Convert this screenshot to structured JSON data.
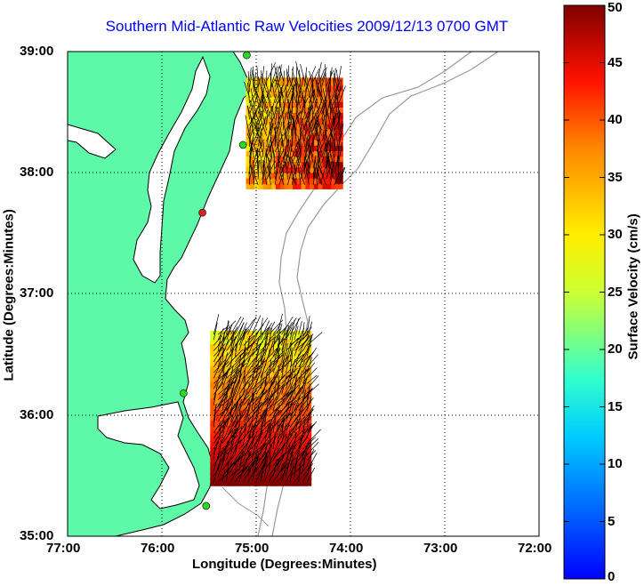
{
  "title": "Southern Mid-Atlantic Raw Velocities 2009/12/13 0700 GMT",
  "colors": {
    "land": "#5ef9a8",
    "water": "#ffffff",
    "coast": "#000000",
    "bathymetry": "#999999",
    "grid": "#000000",
    "station": "#22dd22",
    "title": "#0000ff"
  },
  "map": {
    "xlabel": "Longitude (Degrees:Minutes)",
    "ylabel": "Latitude (Degrees:Minutes)",
    "lon_range": [
      -77.0,
      -72.0
    ],
    "lat_range": [
      35.0,
      39.0
    ],
    "x_ticks": [
      {
        "value": -77.0,
        "label": "77:00"
      },
      {
        "value": -76.0,
        "label": "76:00"
      },
      {
        "value": -75.0,
        "label": "75:00"
      },
      {
        "value": -74.0,
        "label": "74:00"
      },
      {
        "value": -73.0,
        "label": "73:00"
      },
      {
        "value": -72.0,
        "label": "72:00"
      }
    ],
    "y_ticks": [
      {
        "value": 39.0,
        "label": "39:00"
      },
      {
        "value": 38.0,
        "label": "38:00"
      },
      {
        "value": 37.0,
        "label": "37:00"
      },
      {
        "value": 36.0,
        "label": "36:00"
      },
      {
        "value": 35.0,
        "label": "35:00"
      }
    ],
    "grid": "dotted"
  },
  "colorbar": {
    "label": "Surface Velocity (cm/s)",
    "range": [
      0,
      50
    ],
    "ticks": [
      "0",
      "5",
      "10",
      "15",
      "20",
      "25",
      "30",
      "35",
      "40",
      "45",
      "50"
    ],
    "colormap": "jet"
  },
  "stations": [
    {
      "lon": -75.1,
      "lat": 38.97,
      "color": "#22dd22"
    },
    {
      "lon": -75.14,
      "lat": 38.23,
      "color": "#22dd22"
    },
    {
      "lon": -75.57,
      "lat": 37.67,
      "color": "#dd2222"
    },
    {
      "lon": -75.77,
      "lat": 36.18,
      "color": "#22dd22"
    },
    {
      "lon": -75.53,
      "lat": 35.25,
      "color": "#22dd22"
    }
  ],
  "velocity_fields": [
    {
      "region": "north",
      "lon_range": [
        -75.07,
        -74.1
      ],
      "lat_range": [
        37.9,
        38.77
      ],
      "speed_range": [
        22,
        45
      ],
      "dominant_direction": "north"
    },
    {
      "region": "south",
      "lon_range": [
        -75.45,
        -74.45
      ],
      "lat_range": [
        35.45,
        36.7
      ],
      "speed_range": [
        25,
        50
      ],
      "dominant_direction": "northeast"
    }
  ]
}
